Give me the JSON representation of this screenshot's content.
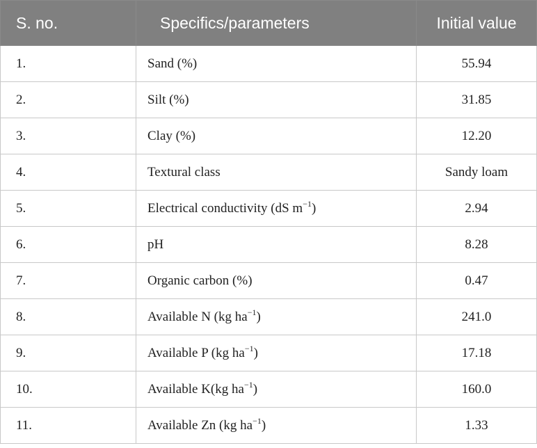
{
  "table": {
    "header": [
      "S. no.",
      "Specifics/parameters",
      "Initial value"
    ],
    "rows": [
      [
        "1.",
        [
          "Sand (%)"
        ],
        "55.94"
      ],
      [
        "2.",
        [
          "Silt (%)"
        ],
        "31.85"
      ],
      [
        "3.",
        [
          "Clay (%)"
        ],
        "12.20"
      ],
      [
        "4.",
        [
          "Textural class"
        ],
        "Sandy loam"
      ],
      [
        "5.",
        [
          "Electrical conductivity (dS m",
          "−1",
          ")"
        ],
        "2.94"
      ],
      [
        "6.",
        [
          "pH"
        ],
        "8.28"
      ],
      [
        "7.",
        [
          "Organic carbon (%)"
        ],
        "0.47"
      ],
      [
        "8.",
        [
          "Available N (kg ha",
          "−1",
          ")"
        ],
        "241.0"
      ],
      [
        "9.",
        [
          "Available P (kg ha",
          "−1",
          ")"
        ],
        "17.18"
      ],
      [
        "10.",
        [
          "Available K(kg ha",
          "−1",
          ")"
        ],
        "160.0"
      ],
      [
        "11.",
        [
          "Available Zn (kg ha",
          "−1",
          ")"
        ],
        "1.33"
      ]
    ]
  }
}
